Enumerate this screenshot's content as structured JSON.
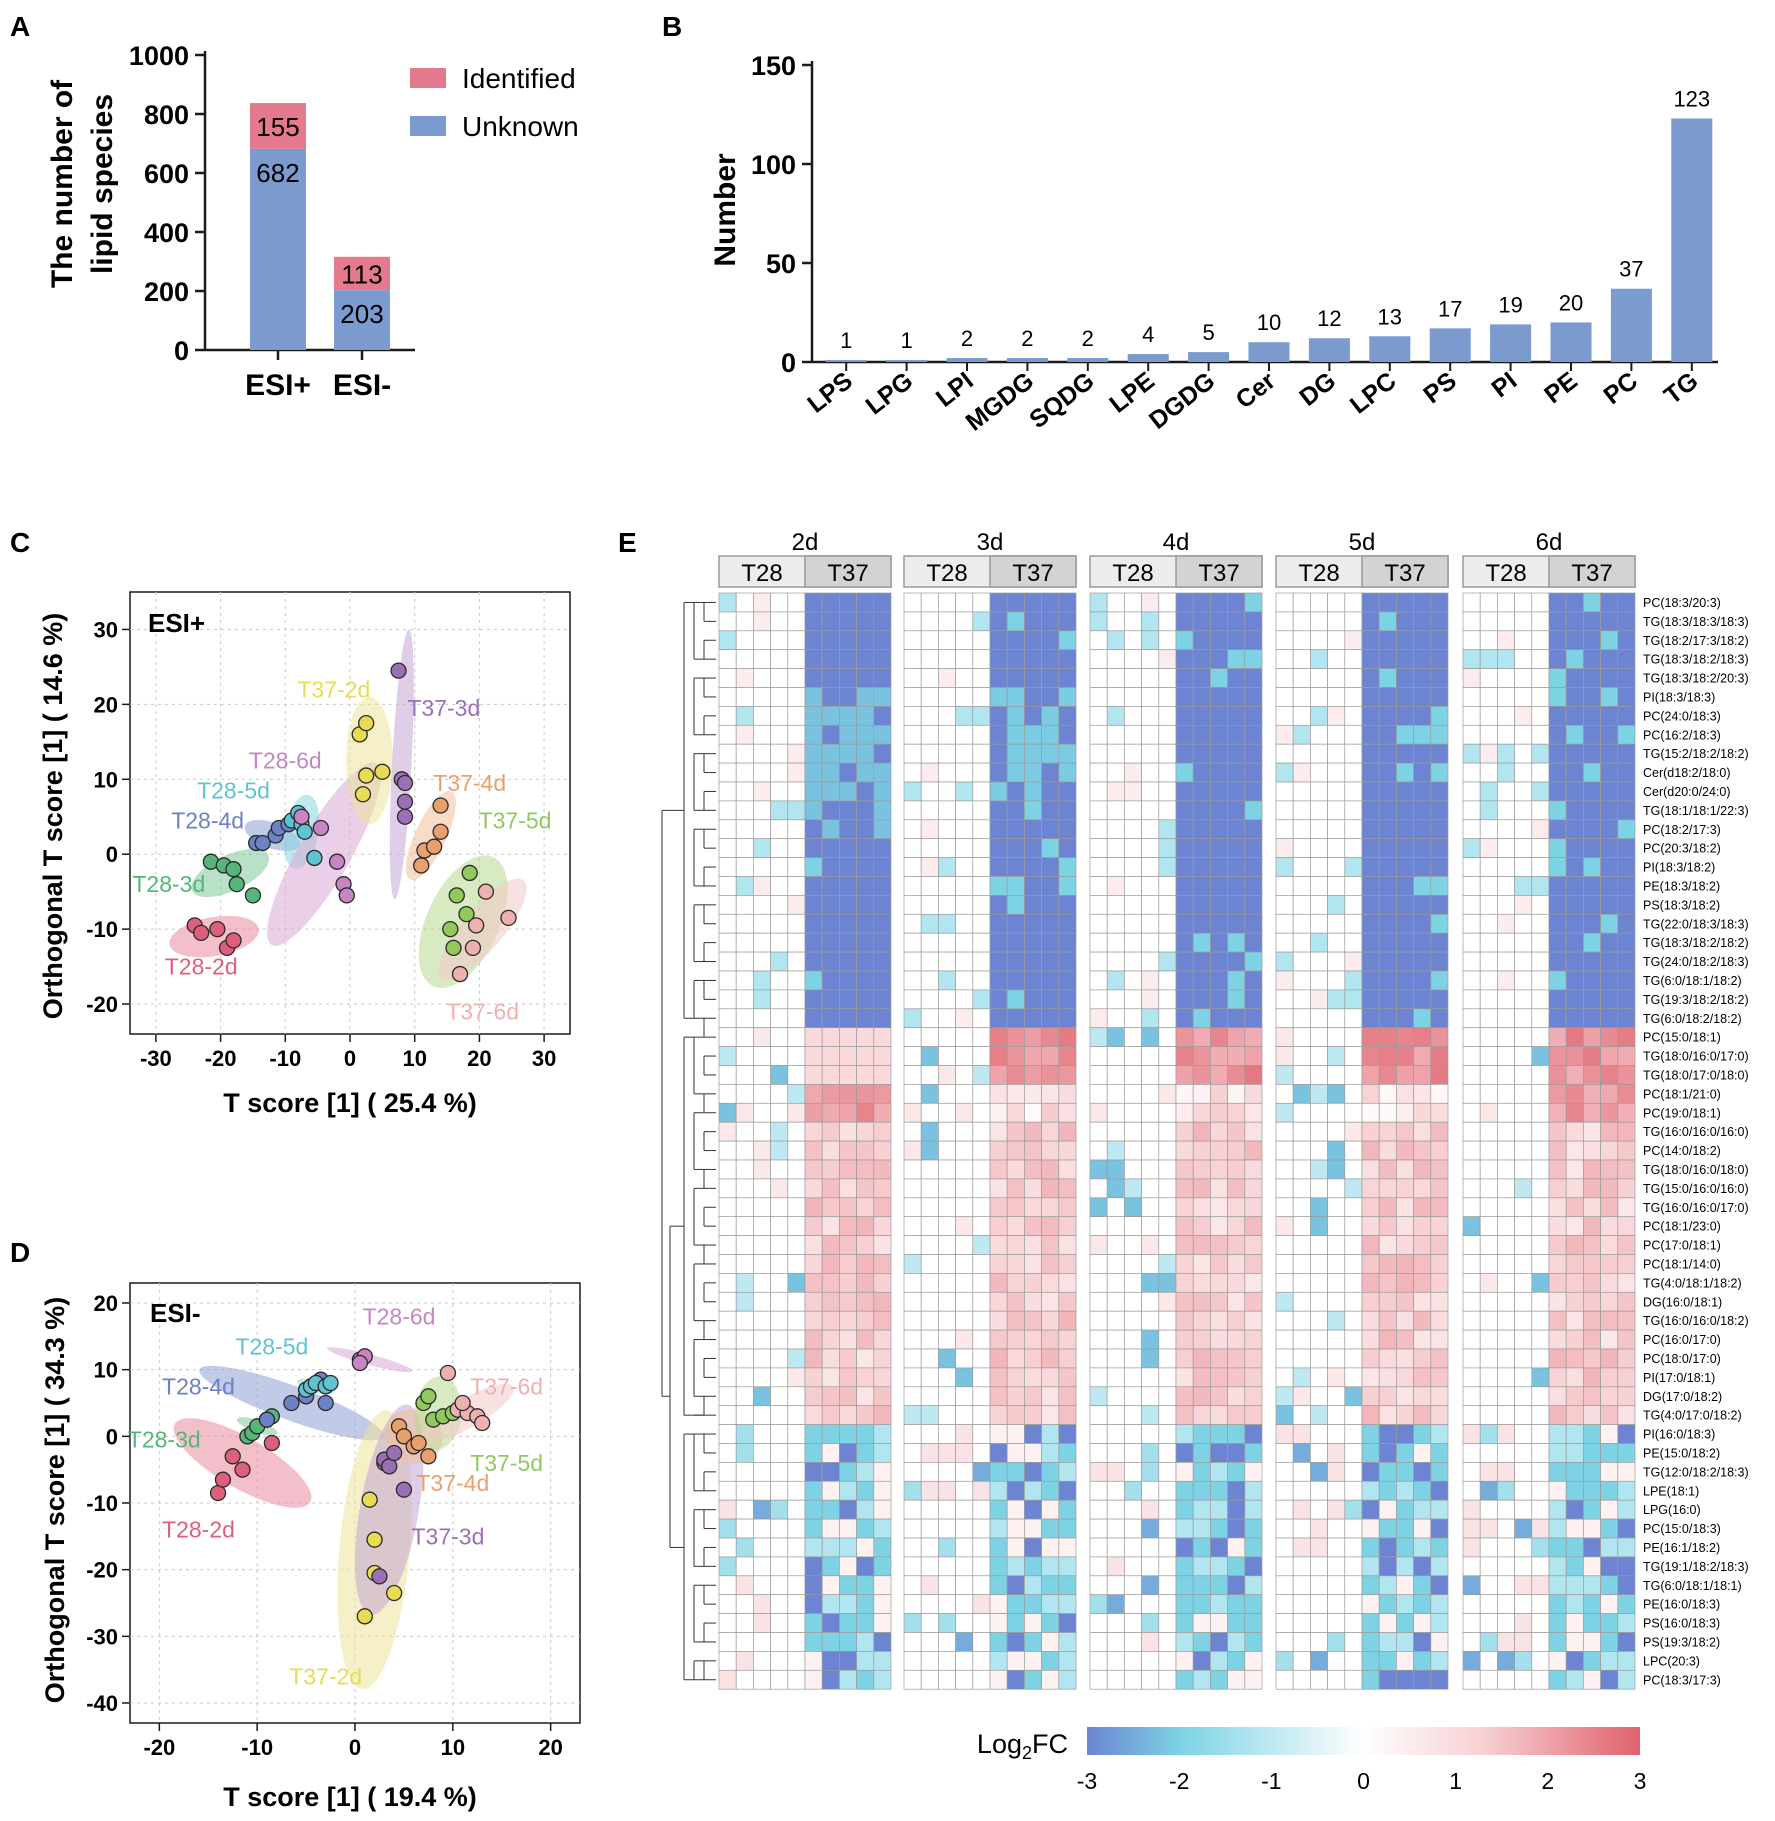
{
  "panel_letters": [
    "A",
    "B",
    "C",
    "D",
    "E"
  ],
  "colors": {
    "identified": "#e57a8e",
    "unknown": "#7b9bcf",
    "heat_neg3": "#6c84d1",
    "heat_neg2": "#7dd3e4",
    "heat_zero": "#ffffff",
    "heat_pos3": "#e0616c",
    "axis": "#1a1a1a"
  },
  "chart_data": [
    {
      "id": "A",
      "type": "bar",
      "stacked": true,
      "ylabel_lines": [
        "The number of",
        "lipid species"
      ],
      "xlabel": "",
      "categories": [
        "ESI+",
        "ESI-"
      ],
      "ylim": [
        0,
        1000
      ],
      "yticks": [
        0,
        200,
        400,
        600,
        800,
        1000
      ],
      "series": [
        {
          "name": "Unknown",
          "values": [
            682,
            203
          ]
        },
        {
          "name": "Identified",
          "values": [
            155,
            113
          ]
        }
      ],
      "legend": [
        "Identified",
        "Unknown"
      ]
    },
    {
      "id": "B",
      "type": "bar",
      "ylabel": "Number",
      "xlabel": "",
      "categories": [
        "LPS",
        "LPG",
        "LPI",
        "MGDG",
        "SQDG",
        "LPE",
        "DGDG",
        "Cer",
        "DG",
        "LPC",
        "PS",
        "PI",
        "PE",
        "PC",
        "TG"
      ],
      "values": [
        1,
        1,
        2,
        2,
        2,
        4,
        5,
        10,
        12,
        13,
        17,
        19,
        20,
        37,
        123
      ],
      "ylim": [
        0,
        150
      ],
      "yticks": [
        0,
        50,
        100,
        150
      ]
    },
    {
      "id": "C",
      "type": "scatter",
      "subtitle": "ESI+",
      "xlabel": "T score [1] ( 25.4 %)",
      "ylabel": "Orthogonal T score [1] ( 14.6 %)",
      "xlim": [
        -34,
        34
      ],
      "ylim": [
        -24,
        35
      ],
      "xticks": [
        -30,
        -20,
        -10,
        0,
        10,
        20,
        30
      ],
      "yticks": [
        -20,
        -10,
        0,
        10,
        20,
        30
      ],
      "groups": [
        {
          "name": "T28-2d",
          "color": "#dd5f7c",
          "ellipse_color": "#e88aa0",
          "points": [
            [
              -24,
              -9.5
            ],
            [
              -23,
              -10.5
            ],
            [
              -20.5,
              -10
            ],
            [
              -19,
              -12.5
            ],
            [
              -18,
              -11.5
            ]
          ],
          "ellipse": {
            "cx": -21,
            "cy": -11,
            "rx": 7,
            "ry": 2.6,
            "rot": -10
          },
          "label_at": [
            -23,
            -15
          ]
        },
        {
          "name": "T28-3d",
          "color": "#58b57a",
          "ellipse_color": "#80c99a",
          "points": [
            [
              -21.5,
              -1
            ],
            [
              -19.5,
              -1.5
            ],
            [
              -18,
              -2
            ],
            [
              -17.5,
              -4
            ],
            [
              -15,
              -5.5
            ]
          ],
          "ellipse": {
            "cx": -18.5,
            "cy": -2.5,
            "rx": 6.5,
            "ry": 2.4,
            "rot": -25
          },
          "label_at": [
            -28,
            -4
          ]
        },
        {
          "name": "T28-4d",
          "color": "#6d82c6",
          "ellipse_color": "#8ea0d6",
          "points": [
            [
              -14.5,
              1.5
            ],
            [
              -13.5,
              1.5
            ],
            [
              -11.5,
              2.5
            ],
            [
              -11,
              3.5
            ],
            [
              -9.5,
              4
            ]
          ],
          "ellipse": {
            "cx": -12,
            "cy": 2.5,
            "rx": 4.5,
            "ry": 1.7,
            "rot": 20
          },
          "label_at": [
            -22,
            4.5
          ]
        },
        {
          "name": "T28-5d",
          "color": "#5fc3d2",
          "ellipse_color": "#8ad5e0",
          "points": [
            [
              -9,
              4.5
            ],
            [
              -8,
              5.5
            ],
            [
              -7.5,
              4
            ],
            [
              -7,
              3
            ],
            [
              -5.5,
              -0.5
            ]
          ],
          "ellipse": {
            "cx": -7.5,
            "cy": 3,
            "rx": 2.6,
            "ry": 5,
            "rot": 10
          },
          "label_at": [
            -18,
            8.5
          ]
        },
        {
          "name": "T28-6d",
          "color": "#c885c4",
          "ellipse_color": "#d7a7d3",
          "points": [
            [
              -7.5,
              5
            ],
            [
              -4.5,
              3.5
            ],
            [
              -2,
              -1
            ],
            [
              -1,
              -4
            ],
            [
              -0.5,
              -5.5
            ]
          ],
          "ellipse": {
            "cx": -4,
            "cy": 0,
            "rx": 4,
            "ry": 14,
            "rot": 30
          },
          "label_at": [
            -10,
            12.5
          ]
        },
        {
          "name": "T37-2d",
          "color": "#e7dc52",
          "ellipse_color": "#ede49a",
          "points": [
            [
              1.5,
              16
            ],
            [
              2.5,
              17.5
            ],
            [
              2.5,
              10.5
            ],
            [
              2,
              8
            ],
            [
              5,
              11
            ]
          ],
          "ellipse": {
            "cx": 3,
            "cy": 12.5,
            "rx": 3.6,
            "ry": 8.5,
            "rot": 0
          },
          "label_at": [
            -2.5,
            22
          ]
        },
        {
          "name": "T37-3d",
          "color": "#9b6fb4",
          "ellipse_color": "#c2a6d3",
          "points": [
            [
              7.5,
              24.5
            ],
            [
              8,
              10
            ],
            [
              8.5,
              9.5
            ],
            [
              8.5,
              7
            ],
            [
              8.5,
              5
            ]
          ],
          "ellipse": {
            "cx": 8,
            "cy": 12,
            "rx": 1.5,
            "ry": 18,
            "rot": 3
          },
          "label_at": [
            14.5,
            19.5
          ]
        },
        {
          "name": "T37-4d",
          "color": "#eaa06e",
          "ellipse_color": "#f1bf99",
          "points": [
            [
              11,
              -1.5
            ],
            [
              11.5,
              0.5
            ],
            [
              13,
              1
            ],
            [
              14,
              3
            ],
            [
              14,
              6.5
            ]
          ],
          "ellipse": {
            "cx": 12.5,
            "cy": 2.5,
            "rx": 2.4,
            "ry": 6.5,
            "rot": 25
          },
          "label_at": [
            18.5,
            9.5
          ]
        },
        {
          "name": "T37-5d",
          "color": "#91c85f",
          "ellipse_color": "#b6d98f",
          "points": [
            [
              15.5,
              -10
            ],
            [
              16.5,
              -5.5
            ],
            [
              16,
              -12.5
            ],
            [
              18,
              -8
            ],
            [
              18.5,
              -2.5
            ]
          ],
          "ellipse": {
            "cx": 17.5,
            "cy": -9,
            "rx": 5.6,
            "ry": 9.5,
            "rot": 25
          },
          "label_at": [
            25.5,
            4.5
          ]
        },
        {
          "name": "T37-6d",
          "color": "#efb0b0",
          "ellipse_color": "#f3c8c8",
          "points": [
            [
              17,
              -16
            ],
            [
              19,
              -12.5
            ],
            [
              19.5,
              -9.5
            ],
            [
              21,
              -5
            ],
            [
              24.5,
              -8.5
            ]
          ],
          "ellipse": {
            "cx": 20.5,
            "cy": -10,
            "rx": 3.2,
            "ry": 8.5,
            "rot": 40
          },
          "label_at": [
            20.5,
            -21
          ]
        }
      ]
    },
    {
      "id": "D",
      "type": "scatter",
      "subtitle": "ESI-",
      "xlabel": "T score [1] ( 19.4 %)",
      "ylabel": "Orthogonal T score [1] ( 34.3 %)",
      "xlim": [
        -23,
        23
      ],
      "ylim": [
        -43,
        23
      ],
      "xticks": [
        -20,
        -10,
        0,
        10,
        20
      ],
      "yticks": [
        -40,
        -30,
        -20,
        -10,
        0,
        10,
        20
      ],
      "groups": [
        {
          "name": "T28-2d",
          "color": "#dd5f7c",
          "ellipse_color": "#e88aa0",
          "points": [
            [
              -14,
              -8.5
            ],
            [
              -13.5,
              -6.5
            ],
            [
              -12.5,
              -3
            ],
            [
              -11.5,
              -5
            ],
            [
              -8.5,
              -1
            ]
          ],
          "ellipse": {
            "cx": -11.5,
            "cy": -4,
            "rx": 8,
            "ry": 3.8,
            "rot": 30
          },
          "label_at": [
            -16,
            -14
          ]
        },
        {
          "name": "T28-3d",
          "color": "#58b57a",
          "ellipse_color": "#80c99a",
          "points": [
            [
              -11,
              0
            ],
            [
              -10.5,
              0.5
            ],
            [
              -10,
              1.5
            ],
            [
              -9,
              2.5
            ],
            [
              -8.5,
              3
            ]
          ],
          "ellipse": {
            "cx": -10,
            "cy": 1.5,
            "rx": 2.2,
            "ry": 0.9,
            "rot": 20
          },
          "label_at": [
            -19.5,
            -0.5
          ]
        },
        {
          "name": "T28-4d",
          "color": "#6d82c6",
          "ellipse_color": "#8ea0d6",
          "points": [
            [
              -9,
              2.5
            ],
            [
              -6.5,
              5
            ],
            [
              -5,
              6
            ],
            [
              -3.5,
              8.5
            ],
            [
              -3,
              5
            ]
          ],
          "ellipse": {
            "cx": -6.5,
            "cy": 5,
            "rx": 10,
            "ry": 2.6,
            "rot": 20
          },
          "label_at": [
            -16,
            7.5
          ]
        },
        {
          "name": "T28-5d",
          "color": "#5fc3d2",
          "ellipse_color": "#8ad5e0",
          "points": [
            [
              -5,
              7
            ],
            [
              -4.5,
              7.5
            ],
            [
              -4,
              8
            ],
            [
              -3,
              7.5
            ],
            [
              -2.5,
              8
            ]
          ],
          "ellipse": {
            "cx": -4,
            "cy": 7.5,
            "rx": 2,
            "ry": 0.9,
            "rot": 15
          },
          "label_at": [
            -8.5,
            13.5
          ]
        },
        {
          "name": "T28-6d",
          "color": "#c885c4",
          "ellipse_color": "#d7a7d3",
          "points": [
            [
              0.5,
              11.5
            ],
            [
              1,
              12
            ],
            [
              0.5,
              11
            ]
          ],
          "ellipse": {
            "cx": 1.5,
            "cy": 11.5,
            "rx": 4.5,
            "ry": 0.8,
            "rot": 15
          },
          "label_at": [
            4.5,
            18
          ]
        },
        {
          "name": "T37-2d",
          "color": "#e7dc52",
          "ellipse_color": "#ede49a",
          "points": [
            [
              1.5,
              -9.5
            ],
            [
              2,
              -15.5
            ],
            [
              2,
              -20.5
            ],
            [
              1,
              -27
            ],
            [
              4,
              -23.5
            ]
          ],
          "ellipse": {
            "cx": 2,
            "cy": -17,
            "rx": 3.6,
            "ry": 21,
            "rot": 5
          },
          "label_at": [
            -3,
            -36
          ]
        },
        {
          "name": "T37-3d",
          "color": "#9b6fb4",
          "ellipse_color": "#c2a6d3",
          "points": [
            [
              3,
              -4
            ],
            [
              3,
              -3.5
            ],
            [
              3.5,
              -4.5
            ],
            [
              4,
              -2.5
            ],
            [
              5,
              -8
            ],
            [
              2.5,
              -21
            ]
          ],
          "ellipse": {
            "cx": 3.5,
            "cy": -11,
            "rx": 3,
            "ry": 16,
            "rot": 10
          },
          "label_at": [
            9.5,
            -15
          ]
        },
        {
          "name": "T37-4d",
          "color": "#eaa06e",
          "ellipse_color": "#f1bf99",
          "points": [
            [
              4.5,
              1.5
            ],
            [
              5,
              0
            ],
            [
              6,
              -1.5
            ],
            [
              6.5,
              -1
            ],
            [
              7.5,
              -3
            ]
          ],
          "ellipse": {
            "cx": 6,
            "cy": 0,
            "rx": 3,
            "ry": 4,
            "rot": 20
          },
          "label_at": [
            10,
            -7
          ]
        },
        {
          "name": "T37-5d",
          "color": "#91c85f",
          "ellipse_color": "#b6d98f",
          "points": [
            [
              7,
              5
            ],
            [
              7.5,
              6
            ],
            [
              8,
              2.5
            ],
            [
              9,
              3
            ],
            [
              10,
              3.5
            ]
          ],
          "ellipse": {
            "cx": 8.5,
            "cy": 3.5,
            "rx": 2.4,
            "ry": 5.5,
            "rot": 5
          },
          "label_at": [
            15.5,
            -4
          ]
        },
        {
          "name": "T37-6d",
          "color": "#efb0b0",
          "ellipse_color": "#f3c8c8",
          "points": [
            [
              9.5,
              9.5
            ],
            [
              10.5,
              4
            ],
            [
              11.5,
              3.5
            ],
            [
              12.5,
              3
            ],
            [
              13,
              2
            ],
            [
              11,
              5
            ]
          ],
          "ellipse": {
            "cx": 11.5,
            "cy": 3.5,
            "rx": 5.4,
            "ry": 2.2,
            "rot": -30
          },
          "label_at": [
            15.5,
            7.5
          ]
        }
      ]
    },
    {
      "id": "E",
      "type": "heatmap",
      "days": [
        "2d",
        "3d",
        "4d",
        "5d",
        "6d"
      ],
      "groups": [
        "T28",
        "T37"
      ],
      "colorbar_label": "Log",
      "colorbar_sub": "2",
      "colorbar_label_suffix": "FC",
      "colorbar_ticks": [
        "-3",
        "-2",
        "-1",
        "0",
        "1",
        "2",
        "3"
      ],
      "color_range": [
        -3,
        3
      ],
      "rows": [
        "PC(18:3/20:3)",
        "TG(18:3/18:3/18:3)",
        "TG(18:2/17:3/18:2)",
        "TG(18:3/18:2/18:3)",
        "TG(18:3/18:2/20:3)",
        "PI(18:3/18:3)",
        "PC(24:0/18:3)",
        "PC(16:2/18:3)",
        "TG(15:2/18:2/18:2)",
        "Cer(d18:2/18:0)",
        "Cer(d20:0/24:0)",
        "TG(18:1/18:1/22:3)",
        "PC(18:2/17:3)",
        "PC(20:3/18:2)",
        "PI(18:3/18:2)",
        "PE(18:3/18:2)",
        "PS(18:3/18:2)",
        "TG(22:0/18:3/18:3)",
        "TG(18:3/18:2/18:2)",
        "TG(24:0/18:2/18:3)",
        "TG(6:0/18:1/18:2)",
        "TG(19:3/18:2/18:2)",
        "TG(6:0/18:2/18:2)",
        "PC(15:0/18:1)",
        "TG(18:0/16:0/17:0)",
        "TG(18:0/17:0/18:0)",
        "PC(18:1/21:0)",
        "PC(19:0/18:1)",
        "TG(16:0/16:0/16:0)",
        "PC(14:0/18:2)",
        "TG(18:0/16:0/18:0)",
        "TG(15:0/16:0/16:0)",
        "TG(16:0/16:0/17:0)",
        "PC(18:1/23:0)",
        "PC(17:0/18:1)",
        "PC(18:1/14:0)",
        "TG(4:0/18:1/18:2)",
        "DG(16:0/18:1)",
        "TG(16:0/16:0/18:2)",
        "PC(16:0/17:0)",
        "PC(18:0/17:0)",
        "PI(17:0/18:1)",
        "DG(17:0/18:2)",
        "TG(4:0/17:0/18:2)",
        "PI(16:0/18:3)",
        "PE(15:0/18:2)",
        "TG(12:0/18:2/18:3)",
        "LPE(18:1)",
        "LPG(16:0)",
        "PC(15:0/18:3)",
        "PE(16:1/18:2)",
        "TG(19:1/18:2/18:3)",
        "TG(6:0/18:1/18:1)",
        "PE(16:0/18:3)",
        "PS(16:0/18:3)",
        "PS(19:3/18:2)",
        "LPC(20:3)",
        "PC(18:3/17:3)"
      ]
    }
  ]
}
